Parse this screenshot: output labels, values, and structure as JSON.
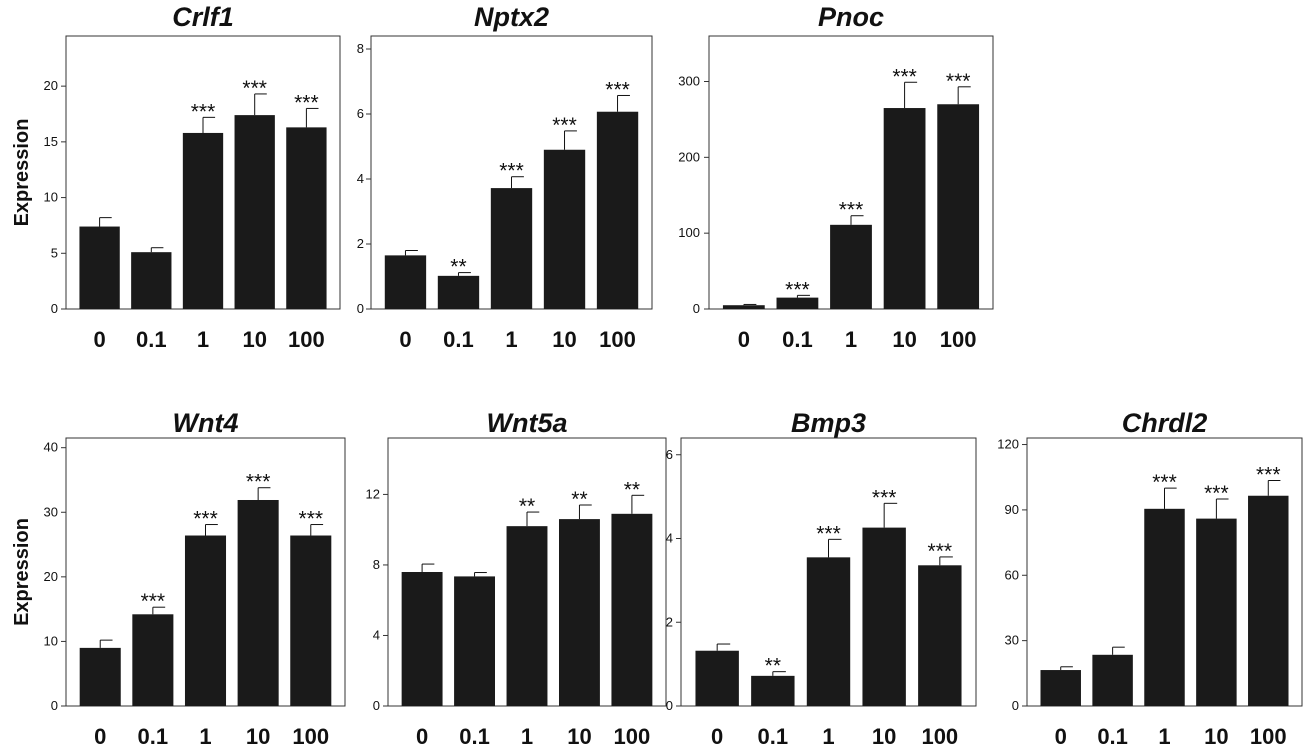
{
  "chart_data": [
    {
      "type": "bar",
      "title": "Crlf1",
      "ylabel": "Expression",
      "categories": [
        "0",
        "0.1",
        "1",
        "10",
        "100"
      ],
      "values": [
        7.4,
        5.1,
        15.8,
        17.4,
        16.3
      ],
      "errors": [
        0.8,
        0.4,
        1.4,
        1.9,
        1.7
      ],
      "significance": [
        "",
        "",
        "***",
        "***",
        "***"
      ],
      "yticks": [
        0,
        5,
        10,
        15,
        20
      ],
      "ylim": [
        0,
        24.5
      ],
      "bar_color": "#1a1a1a"
    },
    {
      "type": "bar",
      "title": "Nptx2",
      "ylabel": "",
      "categories": [
        "0",
        "0.1",
        "1",
        "10",
        "100"
      ],
      "values": [
        1.65,
        1.02,
        3.72,
        4.9,
        6.07
      ],
      "errors": [
        0.15,
        0.1,
        0.35,
        0.58,
        0.5
      ],
      "significance": [
        "",
        "**",
        "***",
        "***",
        "***"
      ],
      "yticks": [
        0,
        2,
        4,
        6,
        8
      ],
      "ylim": [
        0,
        8.4
      ],
      "bar_color": "#1a1a1a"
    },
    {
      "type": "bar",
      "title": "Pnoc",
      "ylabel": "",
      "categories": [
        "0",
        "0.1",
        "1",
        "10",
        "100"
      ],
      "values": [
        5,
        15,
        111,
        265,
        270
      ],
      "errors": [
        1,
        3,
        12,
        34,
        23
      ],
      "significance": [
        "",
        "***",
        "***",
        "***",
        "***"
      ],
      "yticks": [
        0,
        100,
        200,
        300
      ],
      "ylim": [
        0,
        360
      ],
      "bar_color": "#1a1a1a"
    },
    {
      "type": "bar",
      "title": "Wnt4",
      "ylabel": "Expression",
      "categories": [
        "0",
        "0.1",
        "1",
        "10",
        "100"
      ],
      "values": [
        9,
        14.2,
        26.4,
        31.9,
        26.4
      ],
      "errors": [
        1.2,
        1.1,
        1.7,
        1.9,
        1.7
      ],
      "significance": [
        "",
        "***",
        "***",
        "***",
        "***"
      ],
      "yticks": [
        0,
        10,
        20,
        30,
        40
      ],
      "ylim": [
        0,
        41.5
      ],
      "bar_color": "#1a1a1a"
    },
    {
      "type": "bar",
      "title": "Wnt5a",
      "ylabel": "",
      "categories": [
        "0",
        "0.1",
        "1",
        "10",
        "100"
      ],
      "values": [
        7.6,
        7.35,
        10.2,
        10.6,
        10.9
      ],
      "errors": [
        0.45,
        0.22,
        0.8,
        0.8,
        1.05
      ],
      "significance": [
        "",
        "",
        "**",
        "**",
        "**"
      ],
      "yticks": [
        0,
        4,
        8,
        12
      ],
      "ylim": [
        0,
        15.2
      ],
      "bar_color": "#1a1a1a"
    },
    {
      "type": "bar",
      "title": "Bmp3",
      "ylabel": "",
      "categories": [
        "0",
        "0.1",
        "1",
        "10",
        "100"
      ],
      "values": [
        1.32,
        0.72,
        3.55,
        4.26,
        3.36
      ],
      "errors": [
        0.16,
        0.1,
        0.43,
        0.58,
        0.2
      ],
      "significance": [
        "",
        "**",
        "***",
        "***",
        "***"
      ],
      "yticks": [
        0,
        2,
        4,
        6
      ],
      "ylim": [
        0,
        6.4
      ],
      "bar_color": "#1a1a1a"
    },
    {
      "type": "bar",
      "title": "Chrdl2",
      "ylabel": "",
      "categories": [
        "0",
        "0.1",
        "1",
        "10",
        "100"
      ],
      "values": [
        16.5,
        23.5,
        90.5,
        86,
        96.5
      ],
      "errors": [
        1.5,
        3.5,
        9.5,
        9,
        7
      ],
      "significance": [
        "",
        "",
        "***",
        "***",
        "***"
      ],
      "yticks": [
        0,
        30,
        60,
        90,
        120
      ],
      "ylim": [
        0,
        123
      ],
      "bar_color": "#1a1a1a"
    }
  ]
}
